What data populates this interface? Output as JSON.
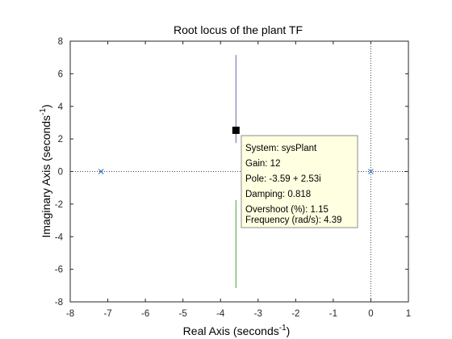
{
  "chart_data": {
    "type": "scatter",
    "title": "Root locus of the plant TF",
    "xlabel": {
      "text": "Real Axis (seconds",
      "sup": "-1",
      "close": ")"
    },
    "ylabel": {
      "text": "Imaginary Axis (seconds",
      "sup": "-1",
      "close": ")"
    },
    "xlim": [
      -8,
      1
    ],
    "ylim": [
      -8,
      8
    ],
    "xticks": [
      -8,
      -7,
      -6,
      -5,
      -4,
      -3,
      -2,
      -1,
      0,
      1
    ],
    "yticks": [
      -8,
      -6,
      -4,
      -2,
      0,
      2,
      4,
      6,
      8
    ],
    "grid": false,
    "poles": [
      {
        "x": -7.18,
        "y": 0
      },
      {
        "x": 0,
        "y": 0
      }
    ],
    "branches": [
      {
        "x": -3.59,
        "y": [
          1.75,
          7.15
        ],
        "color": "#6f5fa8"
      },
      {
        "x": -3.59,
        "y": [
          -1.75,
          -7.15
        ],
        "color": "#3aa63a"
      }
    ],
    "selected_point": {
      "x": -3.59,
      "y": 2.53
    },
    "datatip": [
      "System: sysPlant",
      "Gain: 12",
      "Pole: -3.59 + 2.53i",
      "Damping: 0.818",
      "Overshoot (%): 1.15",
      "Frequency (rad/s): 4.39"
    ],
    "colors": {
      "pole_marker": "#3a7fc0",
      "datatip_bg": "#ffffe1",
      "axis": "#262626"
    }
  }
}
